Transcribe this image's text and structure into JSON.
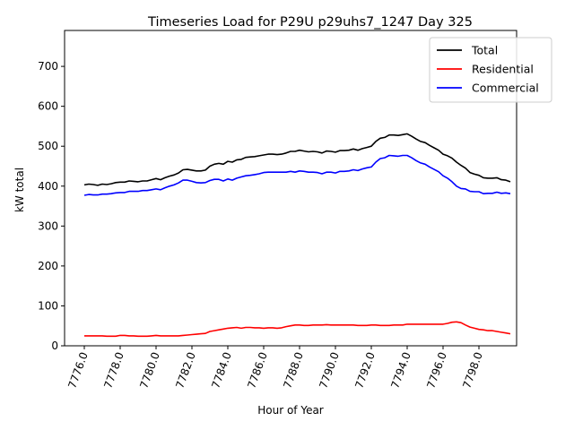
{
  "chart_data": {
    "type": "line",
    "title": "Timeseries Load for P29U p29uhs7_1247  Day 325",
    "xlabel": "Hour of Year",
    "ylabel": "kW total",
    "xlim": [
      7774.9,
      7800.1
    ],
    "ylim": [
      0,
      790
    ],
    "xticks": [
      7776,
      7778,
      7780,
      7782,
      7784,
      7786,
      7788,
      7790,
      7792,
      7794,
      7796,
      7798
    ],
    "xtick_labels": [
      "7776.0",
      "7778.0",
      "7780.0",
      "7782.0",
      "7784.0",
      "7786.0",
      "7788.0",
      "7790.0",
      "7792.0",
      "7794.0",
      "7796.0",
      "7798.0"
    ],
    "yticks": [
      0,
      100,
      200,
      300,
      400,
      500,
      600,
      700
    ],
    "ytick_labels": [
      "0",
      "100",
      "200",
      "300",
      "400",
      "500",
      "600",
      "700"
    ],
    "grid": false,
    "legend_position": "top-right",
    "x": [
      7776.0,
      7776.25,
      7776.5,
      7776.75,
      7777.0,
      7777.25,
      7777.5,
      7777.75,
      7778.0,
      7778.25,
      7778.5,
      7778.75,
      7779.0,
      7779.25,
      7779.5,
      7779.75,
      7780.0,
      7780.25,
      7780.5,
      7780.75,
      7781.0,
      7781.25,
      7781.5,
      7781.75,
      7782.0,
      7782.25,
      7782.5,
      7782.75,
      7783.0,
      7783.25,
      7783.5,
      7783.75,
      7784.0,
      7784.25,
      7784.5,
      7784.75,
      7785.0,
      7785.25,
      7785.5,
      7785.75,
      7786.0,
      7786.25,
      7786.5,
      7786.75,
      7787.0,
      7787.25,
      7787.5,
      7787.75,
      7788.0,
      7788.25,
      7788.5,
      7788.75,
      7789.0,
      7789.25,
      7789.5,
      7789.75,
      7790.0,
      7790.25,
      7790.5,
      7790.75,
      7791.0,
      7791.25,
      7791.5,
      7791.75,
      7792.0,
      7792.25,
      7792.5,
      7792.75,
      7793.0,
      7793.25,
      7793.5,
      7793.75,
      7794.0,
      7794.25,
      7794.5,
      7794.75,
      7795.0,
      7795.25,
      7795.5,
      7795.75,
      7796.0,
      7796.25,
      7796.5,
      7796.75,
      7797.0,
      7797.25,
      7797.5,
      7797.75,
      7798.0,
      7798.25,
      7798.5,
      7798.75,
      7799.0,
      7799.25,
      7799.5,
      7799.75
    ],
    "series": [
      {
        "name": "Total",
        "color": "#000000",
        "values": [
          403,
          405,
          404,
          402,
          405,
          404,
          406,
          409,
          410,
          410,
          413,
          412,
          411,
          413,
          413,
          416,
          419,
          416,
          421,
          425,
          428,
          433,
          441,
          442,
          440,
          438,
          438,
          440,
          450,
          455,
          457,
          455,
          462,
          460,
          466,
          467,
          472,
          473,
          474,
          476,
          478,
          480,
          480,
          479,
          480,
          483,
          487,
          487,
          490,
          488,
          486,
          487,
          486,
          483,
          488,
          487,
          485,
          489,
          489,
          490,
          493,
          490,
          494,
          497,
          500,
          512,
          520,
          522,
          528,
          528,
          527,
          529,
          531,
          525,
          518,
          512,
          509,
          502,
          496,
          490,
          480,
          476,
          470,
          460,
          452,
          445,
          434,
          430,
          427,
          421,
          420,
          420,
          421,
          416,
          415,
          411
        ]
      },
      {
        "name": "Residential",
        "color": "#ff0000",
        "values": [
          25,
          25,
          25,
          25,
          25,
          24,
          24,
          24,
          26,
          26,
          25,
          25,
          24,
          24,
          24,
          25,
          26,
          25,
          25,
          25,
          25,
          25,
          26,
          27,
          28,
          29,
          30,
          31,
          36,
          38,
          40,
          42,
          44,
          45,
          46,
          44,
          46,
          46,
          45,
          45,
          44,
          45,
          45,
          44,
          45,
          48,
          50,
          52,
          52,
          51,
          51,
          52,
          52,
          52,
          53,
          52,
          52,
          52,
          52,
          52,
          52,
          51,
          51,
          51,
          52,
          52,
          51,
          51,
          51,
          52,
          52,
          52,
          54,
          54,
          54,
          54,
          54,
          54,
          54,
          54,
          54,
          56,
          59,
          60,
          58,
          52,
          47,
          44,
          41,
          40,
          38,
          38,
          36,
          34,
          32,
          30
        ]
      },
      {
        "name": "Commercial",
        "color": "#0000ff",
        "values": [
          377,
          379,
          378,
          378,
          380,
          380,
          381,
          383,
          384,
          384,
          387,
          387,
          387,
          389,
          389,
          391,
          393,
          391,
          396,
          400,
          403,
          408,
          415,
          415,
          412,
          409,
          408,
          409,
          414,
          417,
          417,
          413,
          418,
          415,
          420,
          423,
          426,
          427,
          429,
          431,
          434,
          435,
          435,
          435,
          435,
          435,
          437,
          435,
          438,
          437,
          435,
          435,
          434,
          431,
          435,
          435,
          433,
          437,
          437,
          438,
          441,
          439,
          443,
          446,
          448,
          460,
          469,
          471,
          477,
          476,
          475,
          477,
          477,
          471,
          464,
          458,
          455,
          448,
          442,
          436,
          426,
          420,
          411,
          400,
          394,
          393,
          387,
          386,
          386,
          381,
          382,
          382,
          385,
          382,
          383,
          381
        ]
      }
    ]
  }
}
